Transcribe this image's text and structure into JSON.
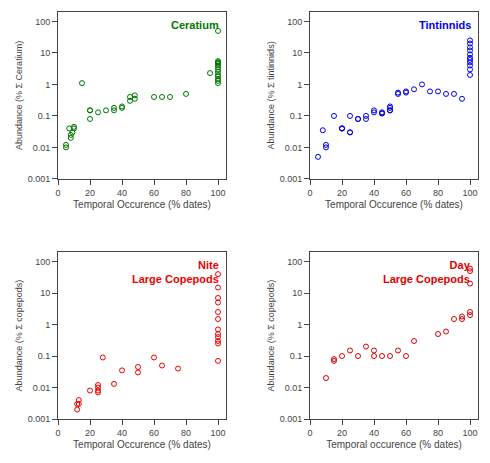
{
  "chart_data": [
    {
      "type": "scatter",
      "title": "Ceratium",
      "x": [
        5,
        5,
        7,
        8,
        8,
        9,
        10,
        10,
        15,
        20,
        20,
        20,
        25,
        30,
        35,
        35,
        40,
        40,
        45,
        45,
        48,
        48,
        60,
        65,
        70,
        80,
        95,
        100,
        100,
        100,
        100,
        100,
        100,
        100,
        100,
        100,
        100,
        100,
        100,
        100,
        100
      ],
      "values": [
        0.01,
        0.012,
        0.04,
        0.025,
        0.02,
        0.03,
        0.04,
        0.045,
        1.1,
        0.08,
        0.15,
        0.15,
        0.13,
        0.15,
        0.15,
        0.18,
        0.18,
        0.2,
        0.3,
        0.4,
        0.35,
        0.45,
        0.4,
        0.4,
        0.4,
        0.5,
        2.3,
        5.0,
        5.5,
        5.0,
        4.5,
        4.0,
        3.5,
        3.0,
        2.5,
        2.0,
        1.8,
        1.5,
        1.3,
        1.1,
        50.0
      ],
      "color": "#007700",
      "marker": "circle-open",
      "xlabel": "Temporal Occurence (% dates)",
      "ylabel": "Abundance (% Σ Ceratium)",
      "xlim": [
        0,
        105
      ],
      "xticks": [
        0,
        20,
        40,
        60,
        80,
        100
      ],
      "ylim": [
        0.001,
        200
      ],
      "yticks": [
        0.001,
        0.01,
        0.1,
        1,
        10,
        100
      ],
      "log": "y",
      "grid": false
    },
    {
      "type": "scatter",
      "title": "Tintinnids",
      "x": [
        5,
        8,
        10,
        10,
        15,
        20,
        20,
        20,
        25,
        25,
        25,
        30,
        30,
        35,
        35,
        40,
        40,
        45,
        45,
        45,
        50,
        50,
        50,
        50,
        55,
        55,
        60,
        60,
        65,
        70,
        75,
        80,
        85,
        90,
        95,
        100,
        100,
        100,
        100,
        100,
        100,
        100,
        100,
        100,
        100,
        100
      ],
      "values": [
        0.005,
        0.035,
        0.01,
        0.012,
        0.1,
        0.04,
        0.04,
        0.04,
        0.03,
        0.03,
        0.1,
        0.08,
        0.08,
        0.1,
        0.08,
        0.15,
        0.13,
        0.12,
        0.12,
        0.13,
        0.15,
        0.15,
        0.18,
        0.2,
        0.5,
        0.55,
        0.55,
        0.6,
        0.7,
        1.0,
        0.6,
        0.6,
        0.5,
        0.5,
        0.35,
        2.0,
        3.0,
        4.0,
        5.0,
        6.0,
        7.0,
        9.0,
        12.0,
        15.0,
        20.0,
        25.0
      ],
      "color": "#0000ee",
      "marker": "circle-open",
      "xlabel": "Temporal Occurence (% dates)",
      "ylabel": "Abundance (% Σ tintinnids)",
      "xlim": [
        0,
        105
      ],
      "xticks": [
        0,
        20,
        40,
        60,
        80,
        100
      ],
      "ylim": [
        0.001,
        200
      ],
      "yticks": [
        0.001,
        0.01,
        0.1,
        1,
        10,
        100
      ],
      "log": "y",
      "grid": false
    },
    {
      "type": "scatter",
      "title": "Nite\nLarge Copepods",
      "x": [
        12,
        12,
        13,
        13,
        20,
        25,
        25,
        25,
        25,
        28,
        35,
        40,
        50,
        50,
        60,
        65,
        75,
        100,
        100,
        100,
        100,
        100,
        100,
        100,
        100,
        100,
        100,
        100,
        100
      ],
      "values": [
        0.002,
        0.003,
        0.003,
        0.004,
        0.008,
        0.007,
        0.008,
        0.01,
        0.012,
        0.09,
        0.013,
        0.035,
        0.045,
        0.03,
        0.09,
        0.05,
        0.04,
        0.07,
        0.25,
        0.3,
        0.4,
        0.5,
        0.7,
        1.5,
        2.5,
        5.0,
        7.0,
        15.0,
        40.0
      ],
      "color": "#ee0000",
      "marker": "circle-open",
      "xlabel": "Temporal Occurence (% dates)",
      "ylabel": "Abundance (% Σ copepods)",
      "xlim": [
        0,
        105
      ],
      "xticks": [
        0,
        20,
        40,
        60,
        80,
        100
      ],
      "ylim": [
        0.001,
        200
      ],
      "yticks": [
        0.001,
        0.01,
        0.1,
        1,
        10,
        100
      ],
      "log": "y",
      "grid": false
    },
    {
      "type": "scatter",
      "title": "Day\nLarge Copepods",
      "x": [
        10,
        15,
        15,
        20,
        25,
        30,
        35,
        40,
        40,
        45,
        50,
        55,
        60,
        65,
        80,
        85,
        90,
        95,
        95,
        100,
        100,
        100,
        100,
        100
      ],
      "values": [
        0.02,
        0.07,
        0.08,
        0.1,
        0.15,
        0.1,
        0.2,
        0.15,
        0.1,
        0.1,
        0.1,
        0.15,
        0.1,
        0.3,
        0.5,
        0.6,
        1.5,
        1.5,
        1.8,
        2.0,
        2.5,
        20.0,
        50.0,
        60.0
      ],
      "color": "#dd0000",
      "marker": "circle-open",
      "xlabel": "Temporal occurence (% dates)",
      "ylabel": "Abundance (% Σ copepods)",
      "xlim": [
        0,
        105
      ],
      "xticks": [
        0,
        20,
        40,
        60,
        80,
        100
      ],
      "ylim": [
        0.001,
        200
      ],
      "yticks": [
        0.001,
        0.01,
        0.1,
        1,
        10,
        100
      ],
      "log": "y",
      "grid": false
    }
  ]
}
